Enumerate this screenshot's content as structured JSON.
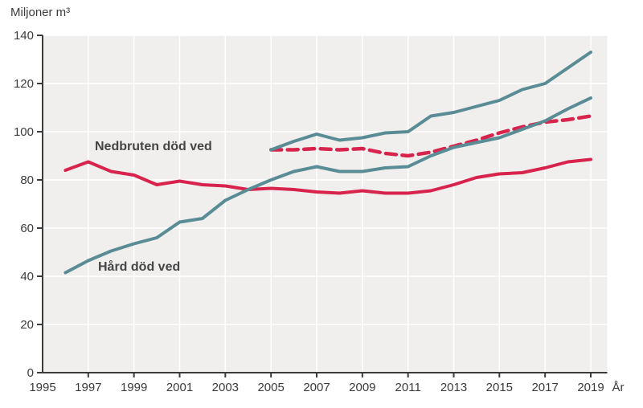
{
  "title": "Miljoner m³",
  "x_axis_label": "År",
  "series_labels": {
    "nedbruten": "Nedbruten död ved",
    "hard": "Hård död ved"
  },
  "colors": {
    "teal": "#5a8c96",
    "red": "#d8234c",
    "plot_bg": "#f0efee",
    "grid": "#ffffff",
    "axis": "#3d3c3c",
    "tick_text": "#3b3b3b",
    "label_text": "#454545"
  },
  "chart_data": {
    "type": "line",
    "title": "Miljoner m³",
    "xlabel": "År",
    "ylabel": "",
    "ylim": [
      0,
      140
    ],
    "xlim": [
      1995,
      2019.7
    ],
    "grid": true,
    "legend_position": "inline-annotations",
    "y_ticks": [
      0,
      20,
      40,
      60,
      80,
      100,
      120,
      140
    ],
    "x_ticks": [
      1995,
      1997,
      1999,
      2001,
      2003,
      2005,
      2007,
      2009,
      2011,
      2013,
      2015,
      2017,
      2019
    ],
    "series": [
      {
        "name": "Nedbruten död ved",
        "style": "solid",
        "color_key": "red",
        "years": [
          1996,
          1997,
          1998,
          1999,
          2000,
          2001,
          2002,
          2003,
          2004,
          2005,
          2006,
          2007,
          2008,
          2009,
          2010,
          2011,
          2012,
          2013,
          2014,
          2015,
          2016,
          2017,
          2018,
          2019
        ],
        "values": [
          84,
          87.5,
          83.5,
          82,
          78,
          79.5,
          78,
          77.5,
          76,
          76.5,
          76,
          75,
          74.5,
          75.5,
          74.5,
          74.5,
          75.5,
          78,
          81,
          82.5,
          83,
          85,
          87.5,
          88.5
        ]
      },
      {
        "name": "Nedbruten död ved (dashed, from 2005)",
        "style": "dashed",
        "color_key": "red",
        "years": [
          2005,
          2006,
          2007,
          2008,
          2009,
          2010,
          2011,
          2012,
          2013,
          2014,
          2015,
          2016,
          2017,
          2018,
          2019
        ],
        "values": [
          92.5,
          92.5,
          93,
          92.5,
          93,
          91,
          90,
          91.5,
          94,
          96.5,
          99.5,
          102,
          104,
          105,
          106.5
        ]
      },
      {
        "name": "Hård död ved",
        "style": "solid",
        "color_key": "teal",
        "years": [
          1996,
          1997,
          1998,
          1999,
          2000,
          2001,
          2002,
          2003,
          2004,
          2005,
          2006,
          2007,
          2008,
          2009,
          2010,
          2011,
          2012,
          2013,
          2014,
          2015,
          2016,
          2017,
          2018,
          2019
        ],
        "values": [
          41.5,
          46.5,
          50.5,
          53.5,
          56,
          62.5,
          64,
          71.5,
          76,
          80,
          83.5,
          85.5,
          83.5,
          83.5,
          85,
          85.5,
          90,
          93.5,
          95.5,
          97.5,
          101,
          104.5,
          109.5,
          114
        ]
      },
      {
        "name": "Hård död ved (from 2005)",
        "style": "solid",
        "color_key": "teal",
        "years": [
          2005,
          2006,
          2007,
          2008,
          2009,
          2010,
          2011,
          2012,
          2013,
          2014,
          2015,
          2016,
          2017,
          2018,
          2019
        ],
        "values": [
          92.5,
          96,
          99,
          96.5,
          97.5,
          99.5,
          100,
          106.5,
          108,
          110.5,
          113,
          117.5,
          120,
          126.5,
          133
        ]
      }
    ],
    "annotations": [
      {
        "text": "Nedbruten död ved",
        "series": "Nedbruten död ved"
      },
      {
        "text": "Hård död ved",
        "series": "Hård död ved"
      }
    ]
  }
}
